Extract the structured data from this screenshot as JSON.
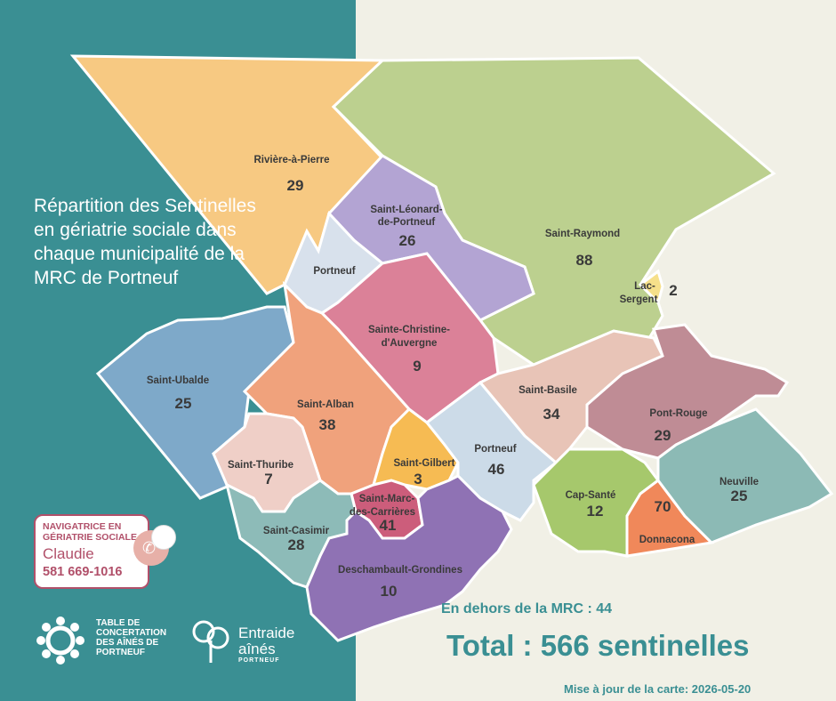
{
  "title": "Répartition des Sentinelles en gériatrie sociale dans chaque municipalité de la MRC de Portneuf",
  "navigator": {
    "role": "NAVIGATRICE EN GÉRIATRIE SOCIALE",
    "name": "Claudie",
    "phone": "581 669-1016"
  },
  "logos": {
    "table": "TABLE DE CONCERTATION DES AÎNÉS DE PORTNEUF",
    "entraide_line1": "Entraide",
    "entraide_line2": "aînés",
    "entraide_sub": "PORTNEUF"
  },
  "municipalities": [
    {
      "name": "Rivière-à-Pierre",
      "count": "29",
      "color": "#f7c982"
    },
    {
      "name": "Saint-Raymond",
      "count": "88",
      "color": "#bcd08f"
    },
    {
      "name": "Saint-Léonard-de-Portneuf",
      "count": "26",
      "color": "#b3a4d3"
    },
    {
      "name": "Portneuf",
      "count": "",
      "color": "#d8e1ec"
    },
    {
      "name": "Lac-Sergent",
      "count": "2",
      "color": "#f6e08a"
    },
    {
      "name": "Sainte-Christine-d'Auvergne",
      "count": "9",
      "color": "#db8198"
    },
    {
      "name": "Saint-Ubalde",
      "count": "25",
      "color": "#7ea9c9"
    },
    {
      "name": "Saint-Alban",
      "count": "38",
      "color": "#f0a27c"
    },
    {
      "name": "Saint-Basile",
      "count": "34",
      "color": "#e8c4b7"
    },
    {
      "name": "Pont-Rouge",
      "count": "29",
      "color": "#bf8c95"
    },
    {
      "name": "Saint-Thuribe",
      "count": "7",
      "color": "#efcfc7"
    },
    {
      "name": "Saint-Gilbert",
      "count": "3",
      "color": "#f6bb53"
    },
    {
      "name": "Portneuf",
      "count": "46",
      "color": "#ccdbe8"
    },
    {
      "name": "Saint-Marc-des-Carrières",
      "count": "41",
      "color": "#cc5d7b"
    },
    {
      "name": "Saint-Casimir",
      "count": "28",
      "color": "#8dbbb8"
    },
    {
      "name": "Cap-Santé",
      "count": "12",
      "color": "#a6c86c"
    },
    {
      "name": "Donnacona",
      "count": "70",
      "color": "#f0885a"
    },
    {
      "name": "Neuville",
      "count": "25",
      "color": "#8cbab5"
    },
    {
      "name": "Deschambault-Grondines",
      "count": "10",
      "color": "#8f72b4"
    }
  ],
  "outside_mrc": "En dehors de la MRC : 44",
  "total": "Total : 566 sentinelles",
  "update": "Mise à jour de la carte:  2026-05-20"
}
